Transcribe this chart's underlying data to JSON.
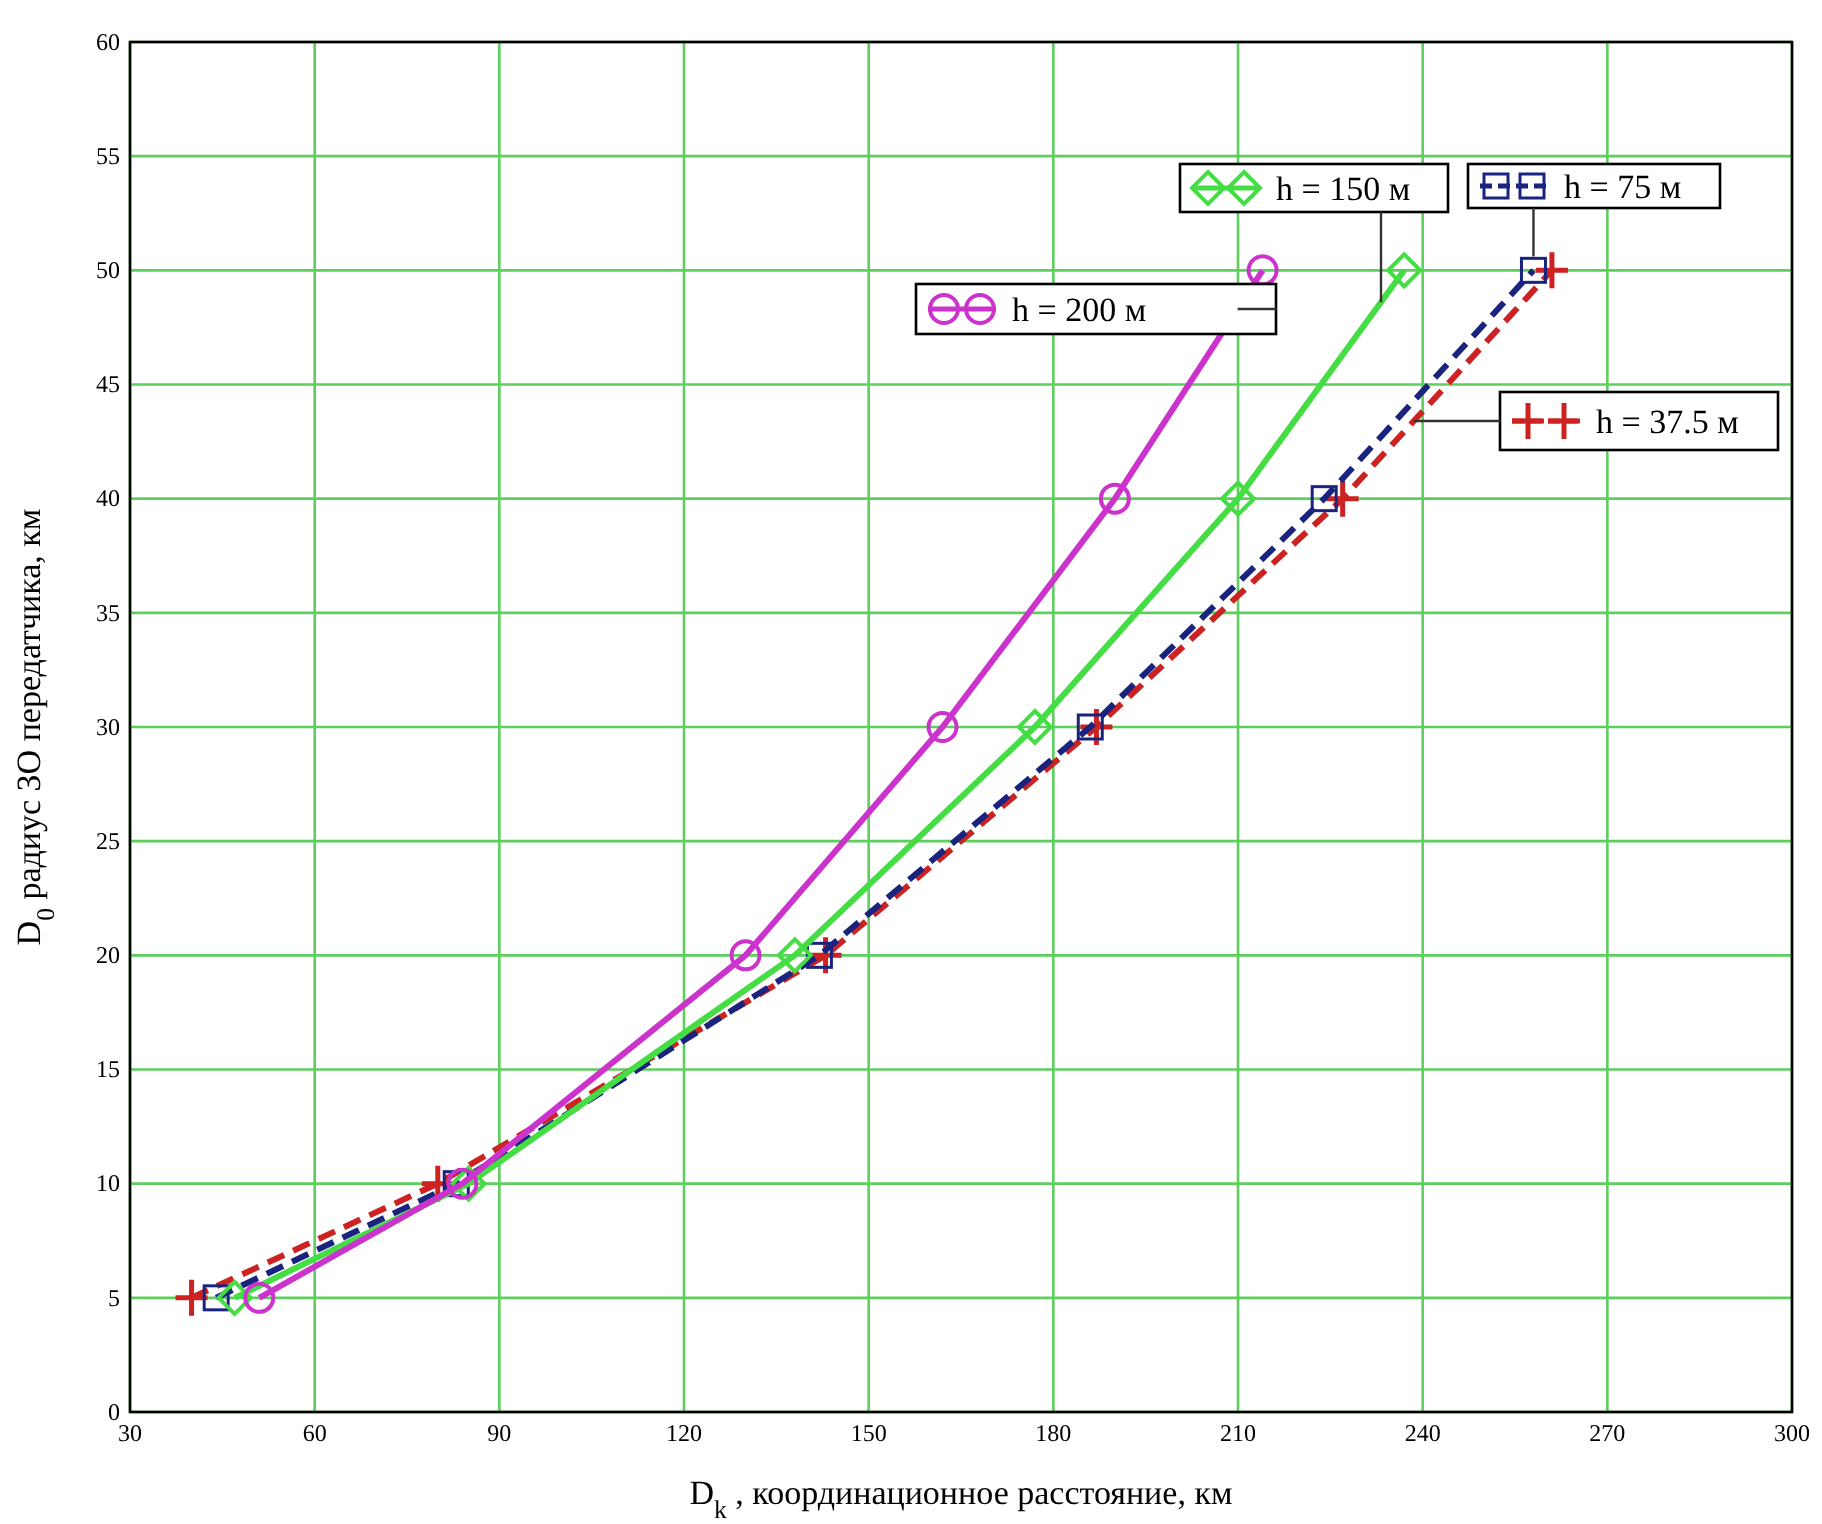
{
  "chart_data": {
    "type": "line",
    "xlabel": "D$_{k}$ , координационное расстояние, км",
    "ylabel": "D$_{0}$ радиус ЗО передатчика, км",
    "xlim": [
      30,
      300
    ],
    "xticks": [
      30,
      60,
      90,
      120,
      150,
      180,
      210,
      240,
      270,
      300
    ],
    "ylim": [
      0,
      60
    ],
    "yticks": [
      0,
      5,
      10,
      15,
      20,
      25,
      30,
      35,
      40,
      45,
      50,
      55,
      60
    ],
    "grid": true,
    "legend": "top right",
    "series": [
      {
        "name": "h = 200 м",
        "color": "#cc33cc",
        "marker": "circle",
        "line_style": "solid",
        "x": [
          51,
          84,
          130,
          162,
          190,
          214
        ],
        "values": [
          5,
          10,
          20,
          30,
          40,
          50
        ]
      },
      {
        "name": "h = 150 м",
        "color": "#44dd44",
        "marker": "diamond",
        "line_style": "solid",
        "x": [
          47,
          85,
          138,
          177,
          210,
          237
        ],
        "values": [
          5,
          10,
          20,
          30,
          40,
          50
        ]
      },
      {
        "name": "h = 75 м",
        "color": "#1a237e",
        "marker": "square",
        "line_style": "dashed",
        "x": [
          44,
          83,
          142,
          186,
          224,
          258
        ],
        "values": [
          5,
          10,
          20,
          30,
          40,
          50
        ]
      },
      {
        "name": "h = 37.5 м",
        "color": "#cc2222",
        "marker": "cross",
        "line_style": "dashed",
        "x": [
          40,
          80,
          143,
          187,
          227,
          261
        ],
        "values": [
          5,
          10,
          20,
          30,
          40,
          50
        ]
      }
    ]
  }
}
